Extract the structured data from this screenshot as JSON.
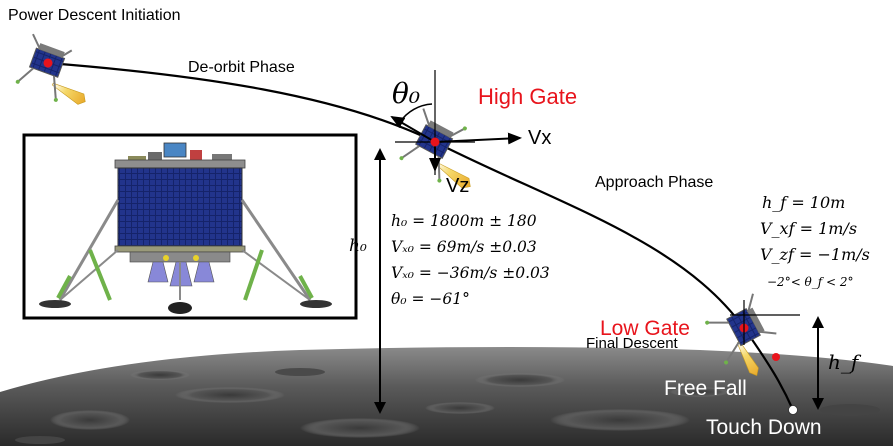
{
  "labels": {
    "power_descent_initiation": "Power Descent Initiation",
    "deorbit_phase": "De-orbit Phase",
    "high_gate": "High Gate",
    "approach_phase": "Approach Phase",
    "low_gate": "Low Gate",
    "final_descent": "Final Descent",
    "free_fall": "Free Fall",
    "touch_down": "Touch Down",
    "vx": "Vx",
    "vz": "Vz"
  },
  "high_gate_conditions": {
    "h0": "h₀ = 1800m ± 180",
    "vx0": "Vₓ₀ = 69m/s ±0.03",
    "vz0": "Vₓ₀ = −36m/s ±0.03",
    "theta0": "θ₀ = −61°"
  },
  "low_gate_conditions": {
    "hf": "h_f = 10m",
    "vxf": "V_xf = 1m/s",
    "vzf": "V_zf = −1m/s",
    "thetaf": "−2°< θ_f < 2°"
  },
  "symbols": {
    "theta0": "θ₀",
    "h0": "h₀",
    "hf": "h_f"
  },
  "colors": {
    "gate_label": "#e8141c",
    "trajectory": "#000000",
    "marker": "#e8141c",
    "surface": "#6c6c6c",
    "flame": "#f2c84a",
    "solar_panel": "#1a2a6e"
  }
}
